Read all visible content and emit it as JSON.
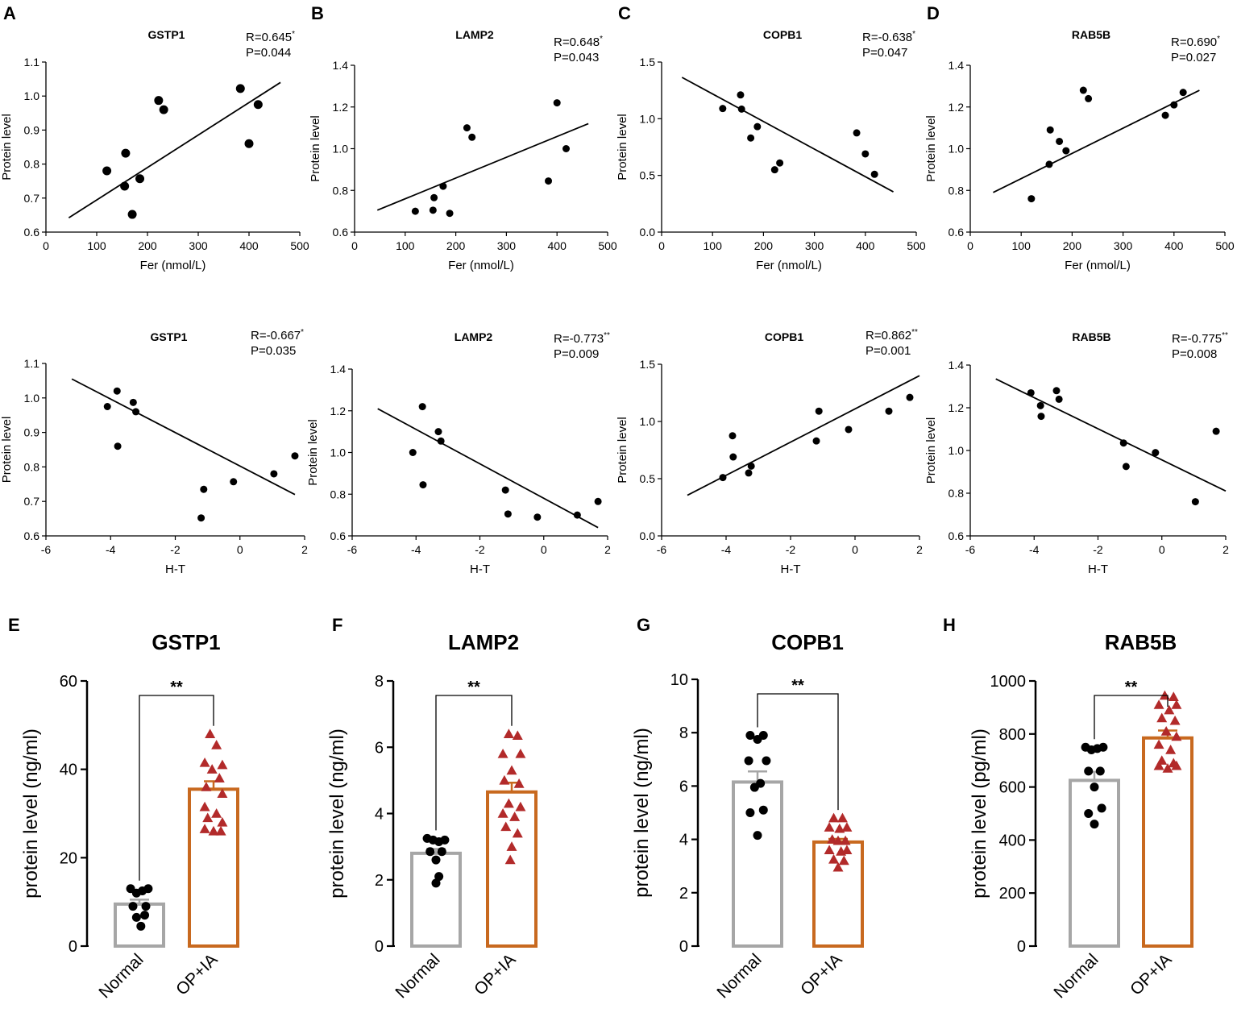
{
  "figure": {
    "colors": {
      "normal": "#a6a6a6",
      "opia": "#c8691f",
      "tri": "#b22a2a",
      "ink": "#000000"
    }
  },
  "chart_data": [
    {
      "id": "A",
      "type": "scatter",
      "title": "GSTP1",
      "stat_r": "R=0.645",
      "stat_star": "*",
      "stat_p": "P=0.044",
      "xlabel": "Fer (nmol/L)",
      "ylabel": "Protein level",
      "xlim": [
        0,
        500
      ],
      "ylim": [
        0.6,
        1.1
      ],
      "xticks": [
        0,
        100,
        200,
        300,
        400,
        500
      ],
      "yticks": [
        0.6,
        0.7,
        0.8,
        0.9,
        1.0,
        1.1
      ],
      "x": [
        120,
        155,
        157,
        170,
        185,
        222,
        232,
        383,
        400,
        418
      ],
      "y": [
        0.78,
        0.735,
        0.832,
        0.652,
        0.757,
        0.987,
        0.96,
        1.022,
        0.86,
        0.975
      ],
      "fit": [
        [
          45,
          0.642
        ],
        [
          462,
          1.04
        ]
      ],
      "marker_r": 5.5
    },
    {
      "id": "B",
      "type": "scatter",
      "title": "LAMP2",
      "stat_r": "R=0.648",
      "stat_star": "*",
      "stat_p": "P=0.043",
      "xlabel": "Fer (nmol/L)",
      "ylabel": "Protein level",
      "xlim": [
        0,
        500
      ],
      "ylim": [
        0.6,
        1.4
      ],
      "xticks": [
        0,
        100,
        200,
        300,
        400,
        500
      ],
      "yticks": [
        0.6,
        0.8,
        1.0,
        1.2,
        1.4
      ],
      "x": [
        120,
        155,
        157,
        175,
        188,
        222,
        232,
        383,
        400,
        418
      ],
      "y": [
        0.7,
        0.705,
        0.765,
        0.82,
        0.69,
        1.1,
        1.055,
        0.845,
        1.22,
        1.0
      ],
      "fit": [
        [
          45,
          0.705
        ],
        [
          462,
          1.12
        ]
      ],
      "marker_r": 4.5
    },
    {
      "id": "C",
      "type": "scatter",
      "title": "COPB1",
      "stat_r": "R=-0.638",
      "stat_star": "*",
      "stat_p": "P=0.047",
      "xlabel": "Fer (nmol/L)",
      "ylabel": "Protein level",
      "xlim": [
        0,
        500
      ],
      "ylim": [
        0.0,
        1.5
      ],
      "xticks": [
        0,
        100,
        200,
        300,
        400,
        500
      ],
      "yticks": [
        0.0,
        0.5,
        1.0,
        1.5
      ],
      "x": [
        120,
        155,
        157,
        175,
        188,
        222,
        232,
        383,
        400,
        418
      ],
      "y": [
        1.09,
        1.21,
        1.085,
        0.83,
        0.93,
        0.55,
        0.61,
        0.875,
        0.69,
        0.51
      ],
      "fit": [
        [
          40,
          1.365
        ],
        [
          455,
          0.355
        ]
      ],
      "marker_r": 4.5
    },
    {
      "id": "D",
      "type": "scatter",
      "title": "RAB5B",
      "stat_r": "R=0.690",
      "stat_star": "*",
      "stat_p": "P=0.027",
      "xlabel": "Fer (nmol/L)",
      "ylabel": "Protein level",
      "xlim": [
        0,
        500
      ],
      "ylim": [
        0.6,
        1.4
      ],
      "xticks": [
        0,
        100,
        200,
        300,
        400,
        500
      ],
      "yticks": [
        0.6,
        0.8,
        1.0,
        1.2,
        1.4
      ],
      "x": [
        120,
        155,
        157,
        175,
        188,
        222,
        232,
        383,
        400,
        418
      ],
      "y": [
        0.76,
        0.925,
        1.09,
        1.035,
        0.99,
        1.28,
        1.24,
        1.16,
        1.21,
        1.27
      ],
      "fit": [
        [
          45,
          0.79
        ],
        [
          450,
          1.28
        ]
      ],
      "marker_r": 4.5
    },
    {
      "id": "A2",
      "type": "scatter",
      "title": "GSTP1",
      "stat_r": "R=-0.667",
      "stat_star": "*",
      "stat_p": "P=0.035",
      "xlabel": "H-T",
      "ylabel": "Protein level",
      "xlim": [
        -6,
        2
      ],
      "ylim": [
        0.6,
        1.1
      ],
      "xticks": [
        -6,
        -4,
        -2,
        0,
        2
      ],
      "yticks": [
        0.6,
        0.7,
        0.8,
        0.9,
        1.0,
        1.1
      ],
      "x": [
        -4.1,
        -3.8,
        -3.78,
        -3.3,
        -3.22,
        -1.2,
        -1.12,
        -0.2,
        1.05,
        1.7
      ],
      "y": [
        0.975,
        1.02,
        0.86,
        0.987,
        0.96,
        0.652,
        0.735,
        0.757,
        0.78,
        0.832
      ],
      "fit": [
        [
          -5.2,
          1.055
        ],
        [
          1.7,
          0.72
        ]
      ],
      "marker_r": 4.5
    },
    {
      "id": "B2",
      "type": "scatter",
      "title": "LAMP2",
      "stat_r": "R=-0.773",
      "stat_star": "**",
      "stat_p": "P=0.009",
      "xlabel": "H-T",
      "ylabel": "Protein level",
      "xlim": [
        -6,
        2
      ],
      "ylim": [
        0.6,
        1.4
      ],
      "xticks": [
        -6,
        -4,
        -2,
        0,
        2
      ],
      "yticks": [
        0.6,
        0.8,
        1.0,
        1.2,
        1.4
      ],
      "x": [
        -4.1,
        -3.8,
        -3.78,
        -3.3,
        -3.22,
        -1.2,
        -1.12,
        -0.2,
        1.05,
        1.7
      ],
      "y": [
        1.0,
        1.22,
        0.845,
        1.1,
        1.055,
        0.82,
        0.705,
        0.69,
        0.7,
        0.765
      ],
      "fit": [
        [
          -5.2,
          1.21
        ],
        [
          1.7,
          0.64
        ]
      ],
      "marker_r": 4.5
    },
    {
      "id": "C2",
      "type": "scatter",
      "title": "COPB1",
      "stat_r": "R=0.862",
      "stat_star": "**",
      "stat_p": "P=0.001",
      "xlabel": "H-T",
      "ylabel": "Protein level",
      "xlim": [
        -6,
        2
      ],
      "ylim": [
        0.0,
        1.5
      ],
      "xticks": [
        -6,
        -4,
        -2,
        0,
        2
      ],
      "yticks": [
        0.0,
        0.5,
        1.0,
        1.5
      ],
      "x": [
        -4.1,
        -3.8,
        -3.78,
        -3.3,
        -3.22,
        -1.2,
        -1.12,
        -0.2,
        1.05,
        1.7
      ],
      "y": [
        0.51,
        0.875,
        0.69,
        0.55,
        0.61,
        0.83,
        1.09,
        0.93,
        1.09,
        1.21
      ],
      "fit": [
        [
          -5.2,
          0.355
        ],
        [
          2.0,
          1.4
        ]
      ],
      "marker_r": 4.5
    },
    {
      "id": "D2",
      "type": "scatter",
      "title": "RAB5B",
      "stat_r": "R=-0.775",
      "stat_star": "**",
      "stat_p": "P=0.008",
      "xlabel": "H-T",
      "ylabel": "Protein level",
      "xlim": [
        -6,
        2
      ],
      "ylim": [
        0.6,
        1.4
      ],
      "xticks": [
        -6,
        -4,
        -2,
        0,
        2
      ],
      "yticks": [
        0.6,
        0.8,
        1.0,
        1.2,
        1.4
      ],
      "x": [
        -4.1,
        -3.8,
        -3.78,
        -3.3,
        -3.22,
        -1.2,
        -1.12,
        -0.2,
        1.05,
        1.7
      ],
      "y": [
        1.27,
        1.21,
        1.16,
        1.28,
        1.24,
        1.035,
        0.925,
        0.99,
        0.76,
        1.09
      ],
      "fit": [
        [
          -5.2,
          1.335
        ],
        [
          2.0,
          0.81
        ]
      ],
      "marker_r": 4.5
    },
    {
      "id": "E",
      "type": "bar",
      "title": "GSTP1",
      "ylabel": "protein level (ng/ml)",
      "categories": [
        "Normal",
        "OP+IA"
      ],
      "ylim": [
        0,
        60
      ],
      "yticks": [
        0,
        20,
        40,
        60
      ],
      "means": [
        9.5,
        35.5
      ],
      "sem": [
        1.0,
        1.8
      ],
      "significance": "**",
      "normal_points": [
        [
          -0.3,
          13.0
        ],
        [
          -0.1,
          12.0
        ],
        [
          0.1,
          12.5
        ],
        [
          0.3,
          13.0
        ],
        [
          -0.22,
          9.0
        ],
        [
          0.22,
          9.0
        ],
        [
          -0.1,
          6.5
        ],
        [
          0.18,
          7.0
        ],
        [
          0.05,
          4.5
        ]
      ],
      "opia_points": [
        [
          -0.12,
          48.0
        ],
        [
          0.1,
          45.5
        ],
        [
          -0.3,
          41.5
        ],
        [
          0.3,
          41.0
        ],
        [
          -0.05,
          40.0
        ],
        [
          0.2,
          38.0
        ],
        [
          -0.25,
          36.0
        ],
        [
          0.3,
          34.5
        ],
        [
          -0.3,
          31.5
        ],
        [
          0.1,
          30.0
        ],
        [
          -0.2,
          29.0
        ],
        [
          0.3,
          28.0
        ],
        [
          -0.3,
          26.5
        ],
        [
          0.0,
          26.0
        ],
        [
          0.25,
          26.0
        ]
      ]
    },
    {
      "id": "F",
      "type": "bar",
      "title": "LAMP2",
      "ylabel": "protein level (ng/ml)",
      "categories": [
        "Normal",
        "OP+IA"
      ],
      "ylim": [
        0,
        8
      ],
      "yticks": [
        0,
        2,
        4,
        6,
        8
      ],
      "means": [
        2.8,
        4.65
      ],
      "sem": [
        0.13,
        0.28
      ],
      "significance": "**",
      "normal_points": [
        [
          -0.3,
          3.25
        ],
        [
          -0.1,
          3.2
        ],
        [
          0.1,
          3.15
        ],
        [
          0.3,
          3.2
        ],
        [
          -0.2,
          2.85
        ],
        [
          0.2,
          2.85
        ],
        [
          0.0,
          2.6
        ],
        [
          0.1,
          2.1
        ],
        [
          0.0,
          1.9
        ]
      ],
      "opia_points": [
        [
          -0.1,
          6.4
        ],
        [
          0.2,
          6.35
        ],
        [
          -0.3,
          5.8
        ],
        [
          0.3,
          5.8
        ],
        [
          0.0,
          5.3
        ],
        [
          -0.25,
          5.0
        ],
        [
          0.25,
          4.9
        ],
        [
          -0.1,
          4.3
        ],
        [
          0.3,
          4.2
        ],
        [
          -0.3,
          4.0
        ],
        [
          0.1,
          3.9
        ],
        [
          -0.2,
          3.6
        ],
        [
          0.2,
          3.4
        ],
        [
          0.0,
          3.0
        ],
        [
          -0.05,
          2.6
        ]
      ]
    },
    {
      "id": "G",
      "type": "bar",
      "title": "COPB1",
      "ylabel": "protein level (ng/ml)",
      "categories": [
        "Normal",
        "OP+IA"
      ],
      "ylim": [
        0,
        10
      ],
      "yticks": [
        0,
        2,
        4,
        6,
        8,
        10
      ],
      "means": [
        6.15,
        3.9
      ],
      "sem": [
        0.4,
        0.12
      ],
      "significance": "**",
      "normal_points": [
        [
          -0.25,
          7.9
        ],
        [
          0.0,
          7.75
        ],
        [
          0.2,
          7.9
        ],
        [
          -0.3,
          6.95
        ],
        [
          0.3,
          6.95
        ],
        [
          0.1,
          6.1
        ],
        [
          -0.1,
          5.95
        ],
        [
          -0.25,
          5.0
        ],
        [
          0.2,
          5.1
        ],
        [
          0.0,
          4.15
        ]
      ],
      "opia_points": [
        [
          -0.15,
          4.8
        ],
        [
          0.15,
          4.8
        ],
        [
          -0.3,
          4.45
        ],
        [
          0.05,
          4.4
        ],
        [
          0.3,
          4.45
        ],
        [
          -0.2,
          4.0
        ],
        [
          0.0,
          3.95
        ],
        [
          0.25,
          3.95
        ],
        [
          -0.3,
          3.6
        ],
        [
          0.1,
          3.55
        ],
        [
          0.3,
          3.6
        ],
        [
          -0.15,
          3.25
        ],
        [
          0.2,
          3.2
        ],
        [
          0.0,
          2.95
        ]
      ]
    },
    {
      "id": "H",
      "type": "bar",
      "title": "RAB5B",
      "ylabel": "protein level (pg/ml)",
      "categories": [
        "Normal",
        "OP+IA"
      ],
      "ylim": [
        0,
        1000
      ],
      "yticks": [
        0,
        200,
        400,
        600,
        800,
        1000
      ],
      "means": [
        625,
        785
      ],
      "sem": [
        32,
        28
      ],
      "significance": "**",
      "normal_points": [
        [
          -0.3,
          750
        ],
        [
          -0.1,
          740
        ],
        [
          0.1,
          745
        ],
        [
          0.3,
          750
        ],
        [
          -0.2,
          660
        ],
        [
          0.2,
          660
        ],
        [
          0.0,
          600
        ],
        [
          -0.2,
          500
        ],
        [
          0.0,
          460
        ],
        [
          0.25,
          520
        ]
      ],
      "opia_points": [
        [
          -0.1,
          945
        ],
        [
          0.2,
          940
        ],
        [
          -0.3,
          910
        ],
        [
          0.3,
          910
        ],
        [
          0.05,
          890
        ],
        [
          -0.2,
          860
        ],
        [
          0.25,
          850
        ],
        [
          -0.05,
          810
        ],
        [
          0.3,
          790
        ],
        [
          -0.3,
          760
        ],
        [
          0.1,
          740
        ],
        [
          -0.2,
          700
        ],
        [
          0.2,
          690
        ],
        [
          -0.3,
          680
        ],
        [
          0.0,
          670
        ],
        [
          0.3,
          680
        ]
      ]
    }
  ],
  "panel_letters": [
    "A",
    "B",
    "C",
    "D",
    "E",
    "F",
    "G",
    "H"
  ]
}
